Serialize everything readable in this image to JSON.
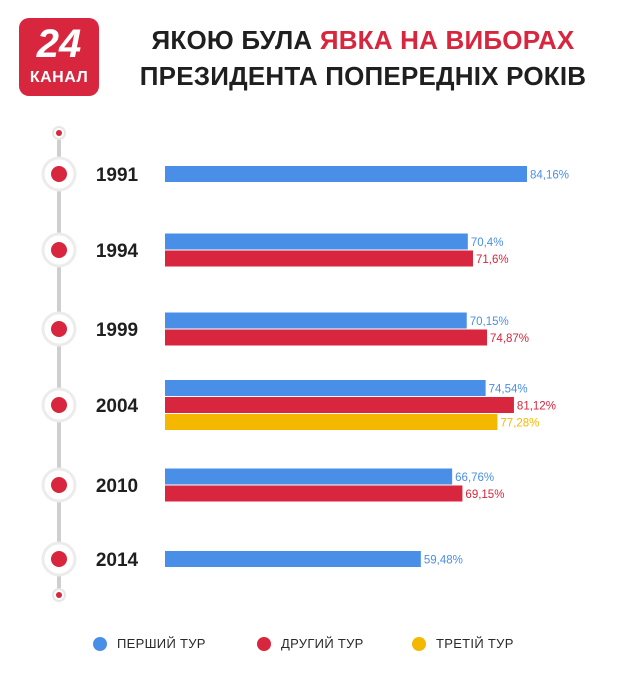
{
  "logo": {
    "number": "24",
    "text": "КАНАЛ"
  },
  "title": {
    "part1": "ЯКОЮ БУЛА ",
    "accent": "ЯВКА НА ВИБОРАХ",
    "line2": "ПРЕЗИДЕНТА ПОПЕРЕДНІХ РОКІВ"
  },
  "colors": {
    "first": "#4a8fe7",
    "second": "#d7263d",
    "third": "#f5b800",
    "brand": "#d7263d",
    "timeline": "#cfcfcf"
  },
  "legend": [
    {
      "label": "ПЕРШИЙ ТУР"
    },
    {
      "label": "ДРУГИЙ ТУР"
    },
    {
      "label": "ТРЕТІЙ ТУР"
    }
  ],
  "chart_data": {
    "type": "bar",
    "orientation": "horizontal",
    "title": "ЯКОЮ БУЛА ЯВКА НА ВИБОРАХ ПРЕЗИДЕНТА ПОПЕРЕДНІХ РОКІВ",
    "categories": [
      "1991",
      "1994",
      "1999",
      "2004",
      "2010",
      "2014"
    ],
    "series": [
      {
        "name": "ПЕРШИЙ ТУР",
        "values": [
          84.16,
          70.4,
          70.15,
          74.54,
          66.76,
          59.48
        ],
        "labels": [
          "84,16%",
          "70,4%",
          "70,15%",
          "74,54%",
          "66,76%",
          "59,48%"
        ]
      },
      {
        "name": "ДРУГИЙ ТУР",
        "values": [
          null,
          71.6,
          74.87,
          81.12,
          69.15,
          null
        ],
        "labels": [
          null,
          "71,6%",
          "74,87%",
          "81,12%",
          "69,15%",
          null
        ]
      },
      {
        "name": "ТРЕТІЙ ТУР",
        "values": [
          null,
          null,
          null,
          77.28,
          null,
          null
        ],
        "labels": [
          null,
          null,
          null,
          "77,28%",
          null,
          null
        ]
      }
    ],
    "xlim": [
      0,
      100
    ],
    "legend_position": "bottom"
  }
}
